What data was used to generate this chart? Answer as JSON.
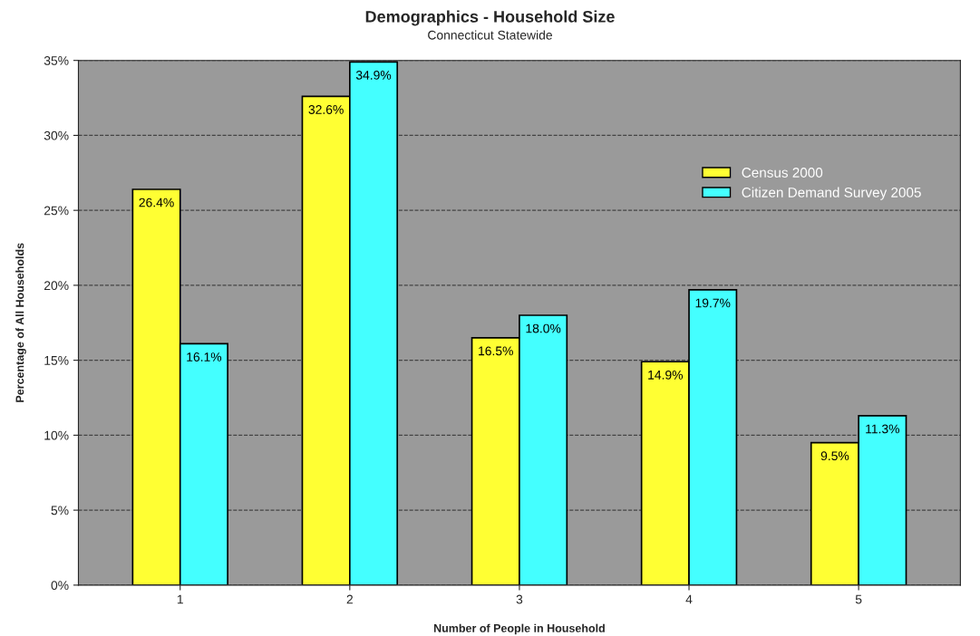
{
  "chart_data": {
    "type": "bar",
    "title": "Demographics - Household Size",
    "subtitle": "Connecticut Statewide",
    "xlabel": "Number of People in Household",
    "ylabel": "Percentage of All Households",
    "categories": [
      "1",
      "2",
      "3",
      "4",
      "5"
    ],
    "series": [
      {
        "name": "Census 2000",
        "color": "#ffff33",
        "values": [
          26.4,
          32.6,
          16.5,
          14.9,
          9.5
        ],
        "value_labels": [
          "26.4%",
          "32.6%",
          "16.5%",
          "14.9%",
          "9.5%"
        ]
      },
      {
        "name": "Citizen Demand Survey 2005",
        "color": "#44ffff",
        "values": [
          16.1,
          34.9,
          18.0,
          19.7,
          11.3
        ],
        "value_labels": [
          "16.1%",
          "34.9%",
          "18.0%",
          "19.7%",
          "11.3%"
        ]
      }
    ],
    "ylim": [
      0,
      35
    ],
    "yticks": [
      {
        "value": 0,
        "label": "0%"
      },
      {
        "value": 5,
        "label": "5%"
      },
      {
        "value": 10,
        "label": "10%"
      },
      {
        "value": 15,
        "label": "15%"
      },
      {
        "value": 20,
        "label": "20%"
      },
      {
        "value": 25,
        "label": "25%"
      },
      {
        "value": 30,
        "label": "30%"
      },
      {
        "value": 35,
        "label": "35%"
      }
    ],
    "grid": "y",
    "legend": "top right"
  }
}
